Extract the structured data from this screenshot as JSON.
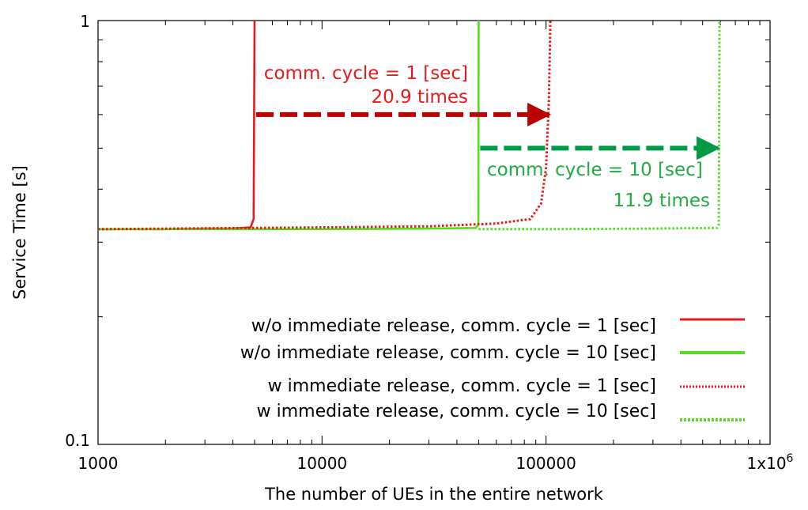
{
  "chart_data": {
    "type": "line",
    "title": "",
    "xlabel": "The number of UEs in the entire network",
    "ylabel": "Service Time [s]",
    "xscale": "log",
    "yscale": "log",
    "xlim": [
      1000,
      1000000
    ],
    "ylim": [
      0.1,
      1
    ],
    "grid": false,
    "legend_position": "bottom-right",
    "x_ticks": [
      {
        "value": 1000,
        "label": "1000"
      },
      {
        "value": 10000,
        "label": "10000"
      },
      {
        "value": 100000,
        "label": "100000"
      },
      {
        "value": 1000000,
        "label": "1x10",
        "sup": "6"
      }
    ],
    "y_ticks": [
      {
        "value": 0.1,
        "label": "0.1"
      },
      {
        "value": 1,
        "label": "1"
      }
    ],
    "series": [
      {
        "name": "w/o immediate release, comm. cycle = 1 [sec]",
        "color": "#e41a1c",
        "style": "solid",
        "x": [
          1000,
          2000,
          3000,
          4000,
          4800,
          4950,
          5000
        ],
        "y": [
          0.322,
          0.322,
          0.323,
          0.323,
          0.325,
          0.34,
          1.0
        ]
      },
      {
        "name": "w/o immediate release, comm. cycle = 10 [sec]",
        "color": "#55dd22",
        "style": "solid",
        "x": [
          1000,
          5000,
          10000,
          30000,
          48500,
          49900,
          50000
        ],
        "y": [
          0.322,
          0.322,
          0.322,
          0.323,
          0.324,
          0.33,
          1.0
        ]
      },
      {
        "name": "w immediate release, comm.  cycle = 1 [sec]",
        "color": "#e41a1c",
        "style": "dotted",
        "x": [
          1000,
          5000,
          10000,
          30000,
          60000,
          85000,
          95000,
          100000,
          103000,
          104500
        ],
        "y": [
          0.322,
          0.324,
          0.325,
          0.327,
          0.332,
          0.34,
          0.37,
          0.45,
          0.65,
          1.0
        ]
      },
      {
        "name": "w immediate release, comm. cycle = 10 [sec]",
        "color": "#55dd22",
        "style": "dotted",
        "x": [
          50000,
          100000,
          300000,
          580000,
          590000,
          595000
        ],
        "y": [
          0.322,
          0.322,
          0.323,
          0.324,
          0.33,
          1.0
        ]
      }
    ],
    "arrows": [
      {
        "from": 5000,
        "to": 104500,
        "y": 0.6,
        "color": "#bb0000"
      },
      {
        "from": 50000,
        "to": 595000,
        "y": 0.5,
        "color": "#009944"
      }
    ],
    "annotations": [
      {
        "text": "comm. cycle = 1 [sec]",
        "color": "#e41a1c"
      },
      {
        "text": "20.9 times",
        "color": "#e41a1c"
      },
      {
        "text": "comm. cycle = 10 [sec]",
        "color": "#22aa44"
      },
      {
        "text": "11.9 times",
        "color": "#22aa44"
      }
    ]
  }
}
